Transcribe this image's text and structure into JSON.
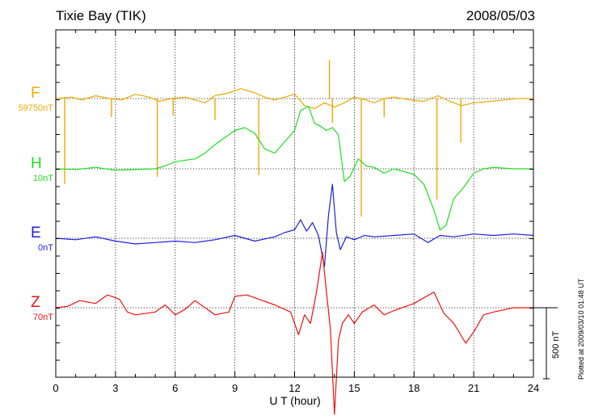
{
  "title_left": "Tixie Bay (TIK)",
  "title_right": "2008/05/03",
  "plotted_note": "Plotted at 2009/03/10 01:48 UT",
  "scale_label": "500 nT",
  "chart_data": {
    "type": "line",
    "xlabel": "U T (hour)",
    "xlim": [
      0,
      24
    ],
    "xticks": [
      0,
      3,
      6,
      9,
      12,
      15,
      18,
      21,
      24
    ],
    "xtick_labels": [
      "0",
      "3",
      "6",
      "9",
      "12",
      "15",
      "18",
      "21",
      "24"
    ],
    "grid": true,
    "units": "nT",
    "scale_bar_nT": 500,
    "series": [
      {
        "name": "F",
        "baseline_label": "59750nT",
        "baseline": 59750,
        "color": "#f0a800",
        "x": [
          0,
          0.4,
          0.8,
          1.3,
          2.0,
          2.7,
          3.3,
          4.0,
          4.7,
          5.2,
          5.8,
          6.5,
          7.0,
          7.5,
          8.0,
          8.7,
          9.3,
          10.0,
          10.5,
          11.0,
          11.5,
          12.0,
          12.5,
          13.0,
          13.5,
          14.0,
          14.5,
          15.0,
          15.6,
          16.0,
          16.5,
          17.0,
          17.8,
          18.5,
          19.2,
          19.8,
          20.4,
          21.0,
          21.8,
          22.5,
          23.2,
          24.0
        ],
        "y": [
          59750,
          59755,
          59760,
          59740,
          59770,
          59750,
          59740,
          59780,
          59760,
          59730,
          59750,
          59760,
          59740,
          59720,
          59770,
          59790,
          59820,
          59790,
          59760,
          59740,
          59760,
          59780,
          59700,
          59680,
          59720,
          59690,
          59720,
          59760,
          59740,
          59720,
          59750,
          59760,
          59740,
          59730,
          59770,
          59730,
          59700,
          59720,
          59730,
          59740,
          59750,
          59750
        ],
        "spikes": [
          {
            "x": 0.45,
            "y": 59150
          },
          {
            "x": 2.8,
            "y": 59620
          },
          {
            "x": 5.1,
            "y": 59200
          },
          {
            "x": 5.9,
            "y": 59630
          },
          {
            "x": 8.0,
            "y": 59600
          },
          {
            "x": 10.2,
            "y": 59210
          },
          {
            "x": 13.75,
            "y": 60020
          },
          {
            "x": 13.9,
            "y": 59580
          },
          {
            "x": 15.35,
            "y": 58920
          },
          {
            "x": 16.5,
            "y": 59620
          },
          {
            "x": 19.15,
            "y": 59040
          },
          {
            "x": 20.35,
            "y": 59440
          }
        ]
      },
      {
        "name": "H",
        "baseline_label": "10nT",
        "baseline": 10,
        "color": "#22dd22",
        "x": [
          0,
          1.0,
          2.0,
          3.0,
          4.0,
          5.0,
          5.5,
          6.0,
          7.0,
          7.5,
          8.0,
          9.0,
          9.5,
          10.0,
          10.5,
          11.0,
          11.5,
          12.0,
          12.3,
          12.7,
          13.0,
          13.3,
          13.6,
          13.9,
          14.2,
          14.5,
          14.8,
          15.2,
          15.6,
          16.0,
          16.5,
          17.0,
          17.5,
          18.0,
          18.5,
          19.0,
          19.3,
          19.6,
          20.0,
          20.5,
          21.0,
          21.5,
          22.0,
          23.0,
          24.0
        ],
        "y": [
          10,
          5,
          20,
          0,
          5,
          10,
          30,
          60,
          80,
          120,
          180,
          280,
          300,
          260,
          150,
          120,
          200,
          280,
          420,
          450,
          330,
          310,
          280,
          300,
          250,
          -80,
          -40,
          80,
          30,
          20,
          -20,
          10,
          -10,
          -30,
          -100,
          -280,
          -420,
          -390,
          -200,
          -120,
          -20,
          10,
          20,
          10,
          10
        ]
      },
      {
        "name": "E",
        "baseline_label": "0nT",
        "baseline": 0,
        "color": "#1f1fdd",
        "x": [
          0,
          1.0,
          2.0,
          3.0,
          4.0,
          5.0,
          6.0,
          7.0,
          8.0,
          9.0,
          10.0,
          11.0,
          11.5,
          12.0,
          12.3,
          12.6,
          12.9,
          13.2,
          13.5,
          13.7,
          13.9,
          14.1,
          14.3,
          14.6,
          15.0,
          15.5,
          16.0,
          17.0,
          18.0,
          18.7,
          19.3,
          20.0,
          21.0,
          22.0,
          23.0,
          24.0
        ],
        "y": [
          0,
          -10,
          10,
          -20,
          -40,
          -30,
          -20,
          -30,
          -10,
          20,
          -20,
          10,
          40,
          60,
          130,
          50,
          110,
          20,
          -200,
          160,
          380,
          40,
          -80,
          10,
          -10,
          20,
          10,
          20,
          30,
          -30,
          20,
          10,
          30,
          20,
          30,
          20
        ]
      },
      {
        "name": "Z",
        "baseline_label": "70nT",
        "baseline": 70,
        "color": "#ee1111",
        "x": [
          0,
          0.6,
          1.2,
          2.0,
          2.6,
          3.2,
          3.6,
          4.0,
          5.0,
          5.5,
          6.0,
          6.5,
          7.0,
          8.0,
          8.7,
          9.0,
          9.6,
          10.2,
          11.0,
          11.8,
          12.2,
          12.5,
          12.8,
          13.1,
          13.4,
          13.6,
          13.8,
          14.0,
          14.2,
          14.4,
          14.7,
          15.0,
          15.4,
          16.0,
          16.5,
          17.0,
          18.0,
          18.5,
          19.0,
          19.5,
          20.0,
          20.6,
          21.0,
          21.5,
          22.0,
          23.0,
          24.0
        ],
        "y": [
          70,
          80,
          120,
          100,
          160,
          130,
          40,
          20,
          40,
          90,
          20,
          60,
          120,
          20,
          40,
          150,
          160,
          130,
          90,
          40,
          -120,
          20,
          -40,
          180,
          460,
          180,
          -80,
          -680,
          -160,
          -40,
          20,
          -40,
          40,
          90,
          20,
          50,
          100,
          140,
          180,
          30,
          -40,
          -180,
          -100,
          20,
          40,
          70,
          70
        ]
      }
    ]
  }
}
